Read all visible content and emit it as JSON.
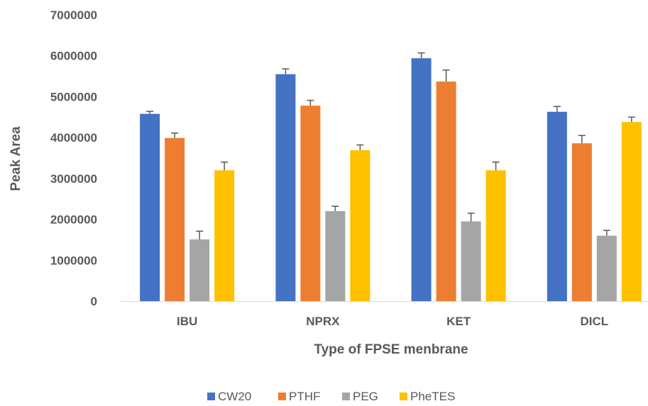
{
  "chart_data": {
    "type": "bar",
    "title": "",
    "xlabel": "Type of FPSE menbrane",
    "ylabel": "Peak Area",
    "categories": [
      "IBU",
      "NPRX",
      "KET",
      "DICL"
    ],
    "ylim": [
      0,
      7000000
    ],
    "yticks": [
      "0",
      "1000000",
      "2000000",
      "3000000",
      "4000000",
      "5000000",
      "6000000",
      "7000000"
    ],
    "grid": false,
    "legend_position": "bottom",
    "series": [
      {
        "name": "CW20",
        "color": "#4472C4",
        "values": [
          4580000,
          5550000,
          5940000,
          4630000
        ],
        "errors": [
          60000,
          130000,
          130000,
          130000
        ]
      },
      {
        "name": "PTHF",
        "color": "#ED7D31",
        "values": [
          3990000,
          4780000,
          5370000,
          3860000
        ],
        "errors": [
          120000,
          130000,
          280000,
          190000
        ]
      },
      {
        "name": "PEG",
        "color": "#A5A5A5",
        "values": [
          1510000,
          2200000,
          1950000,
          1600000
        ],
        "errors": [
          200000,
          120000,
          200000,
          130000
        ]
      },
      {
        "name": "PheTES",
        "color": "#FFC000",
        "values": [
          3200000,
          3690000,
          3200000,
          4380000
        ],
        "errors": [
          200000,
          130000,
          200000,
          120000
        ]
      }
    ]
  }
}
